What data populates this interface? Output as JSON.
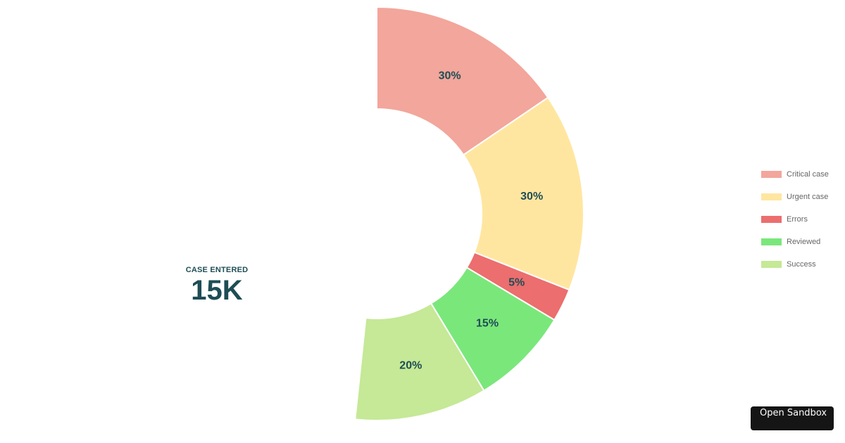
{
  "chart_data": {
    "type": "pie",
    "variant": "partial-donut",
    "title": "",
    "categories": [
      "Critical case",
      "Urgent case",
      "Errors",
      "Reviewed",
      "Success"
    ],
    "values": [
      30,
      30,
      5,
      15,
      20
    ],
    "labels": [
      "30%",
      "30%",
      "5%",
      "15%",
      "20%"
    ],
    "colors": [
      "#F3A69B",
      "#FFE6A0",
      "#EC6E6E",
      "#7AE77B",
      "#C5E996"
    ],
    "start_angle_deg": 0,
    "total_sweep_deg": 186,
    "legend_position": "right",
    "center_label": "CASE ENTERED",
    "center_value": "15K"
  },
  "summary": {
    "label": "CASE ENTERED",
    "value": "15K"
  },
  "legend": {
    "items": [
      {
        "label": "Critical case",
        "color": "#F3A69B"
      },
      {
        "label": "Urgent case",
        "color": "#FFE6A0"
      },
      {
        "label": "Errors",
        "color": "#EC6E6E"
      },
      {
        "label": "Reviewed",
        "color": "#7AE77B"
      },
      {
        "label": "Success",
        "color": "#C5E996"
      }
    ]
  },
  "sandbox_button": {
    "label": "Open Sandbox"
  }
}
